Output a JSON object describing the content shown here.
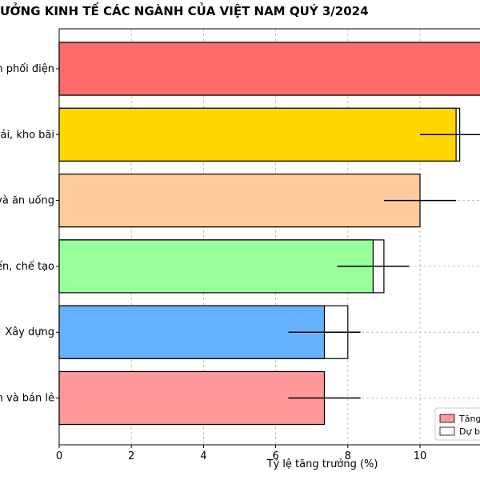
{
  "chart_data": {
    "type": "bar",
    "orientation": "horizontal",
    "title": "ƯỞNG KINH TẾ CÁC NGÀNH CỦA VIỆT NAM QUÝ 3/2024",
    "xlabel": "Tỷ lệ tăng trưởng (%)",
    "ylabel": "",
    "xlim": [
      0,
      11.7
    ],
    "xticks": [
      "0",
      "2",
      "4",
      "6",
      "8",
      "10"
    ],
    "categories": [
      "n phối điện",
      "tải, kho bãi",
      "và ăn uống",
      "ến, chế tạo",
      "Xây dựng",
      "n và bán lẻ"
    ],
    "series": [
      {
        "name": "Tăng",
        "values": [
          12.0,
          11.0,
          10.0,
          8.7,
          7.35,
          7.35
        ],
        "error": [
          null,
          1.0,
          1.0,
          1.0,
          1.0,
          1.0
        ]
      },
      {
        "name": "Dự b",
        "values": [
          11.9,
          11.1,
          9.9,
          9.0,
          8.0,
          7.0
        ]
      }
    ],
    "colors": [
      "#ff6b6b",
      "#ffd700",
      "#ffcc99",
      "#99ff99",
      "#66b2ff",
      "#ff9999"
    ],
    "grid": true,
    "legend_position": "bottom-right"
  }
}
